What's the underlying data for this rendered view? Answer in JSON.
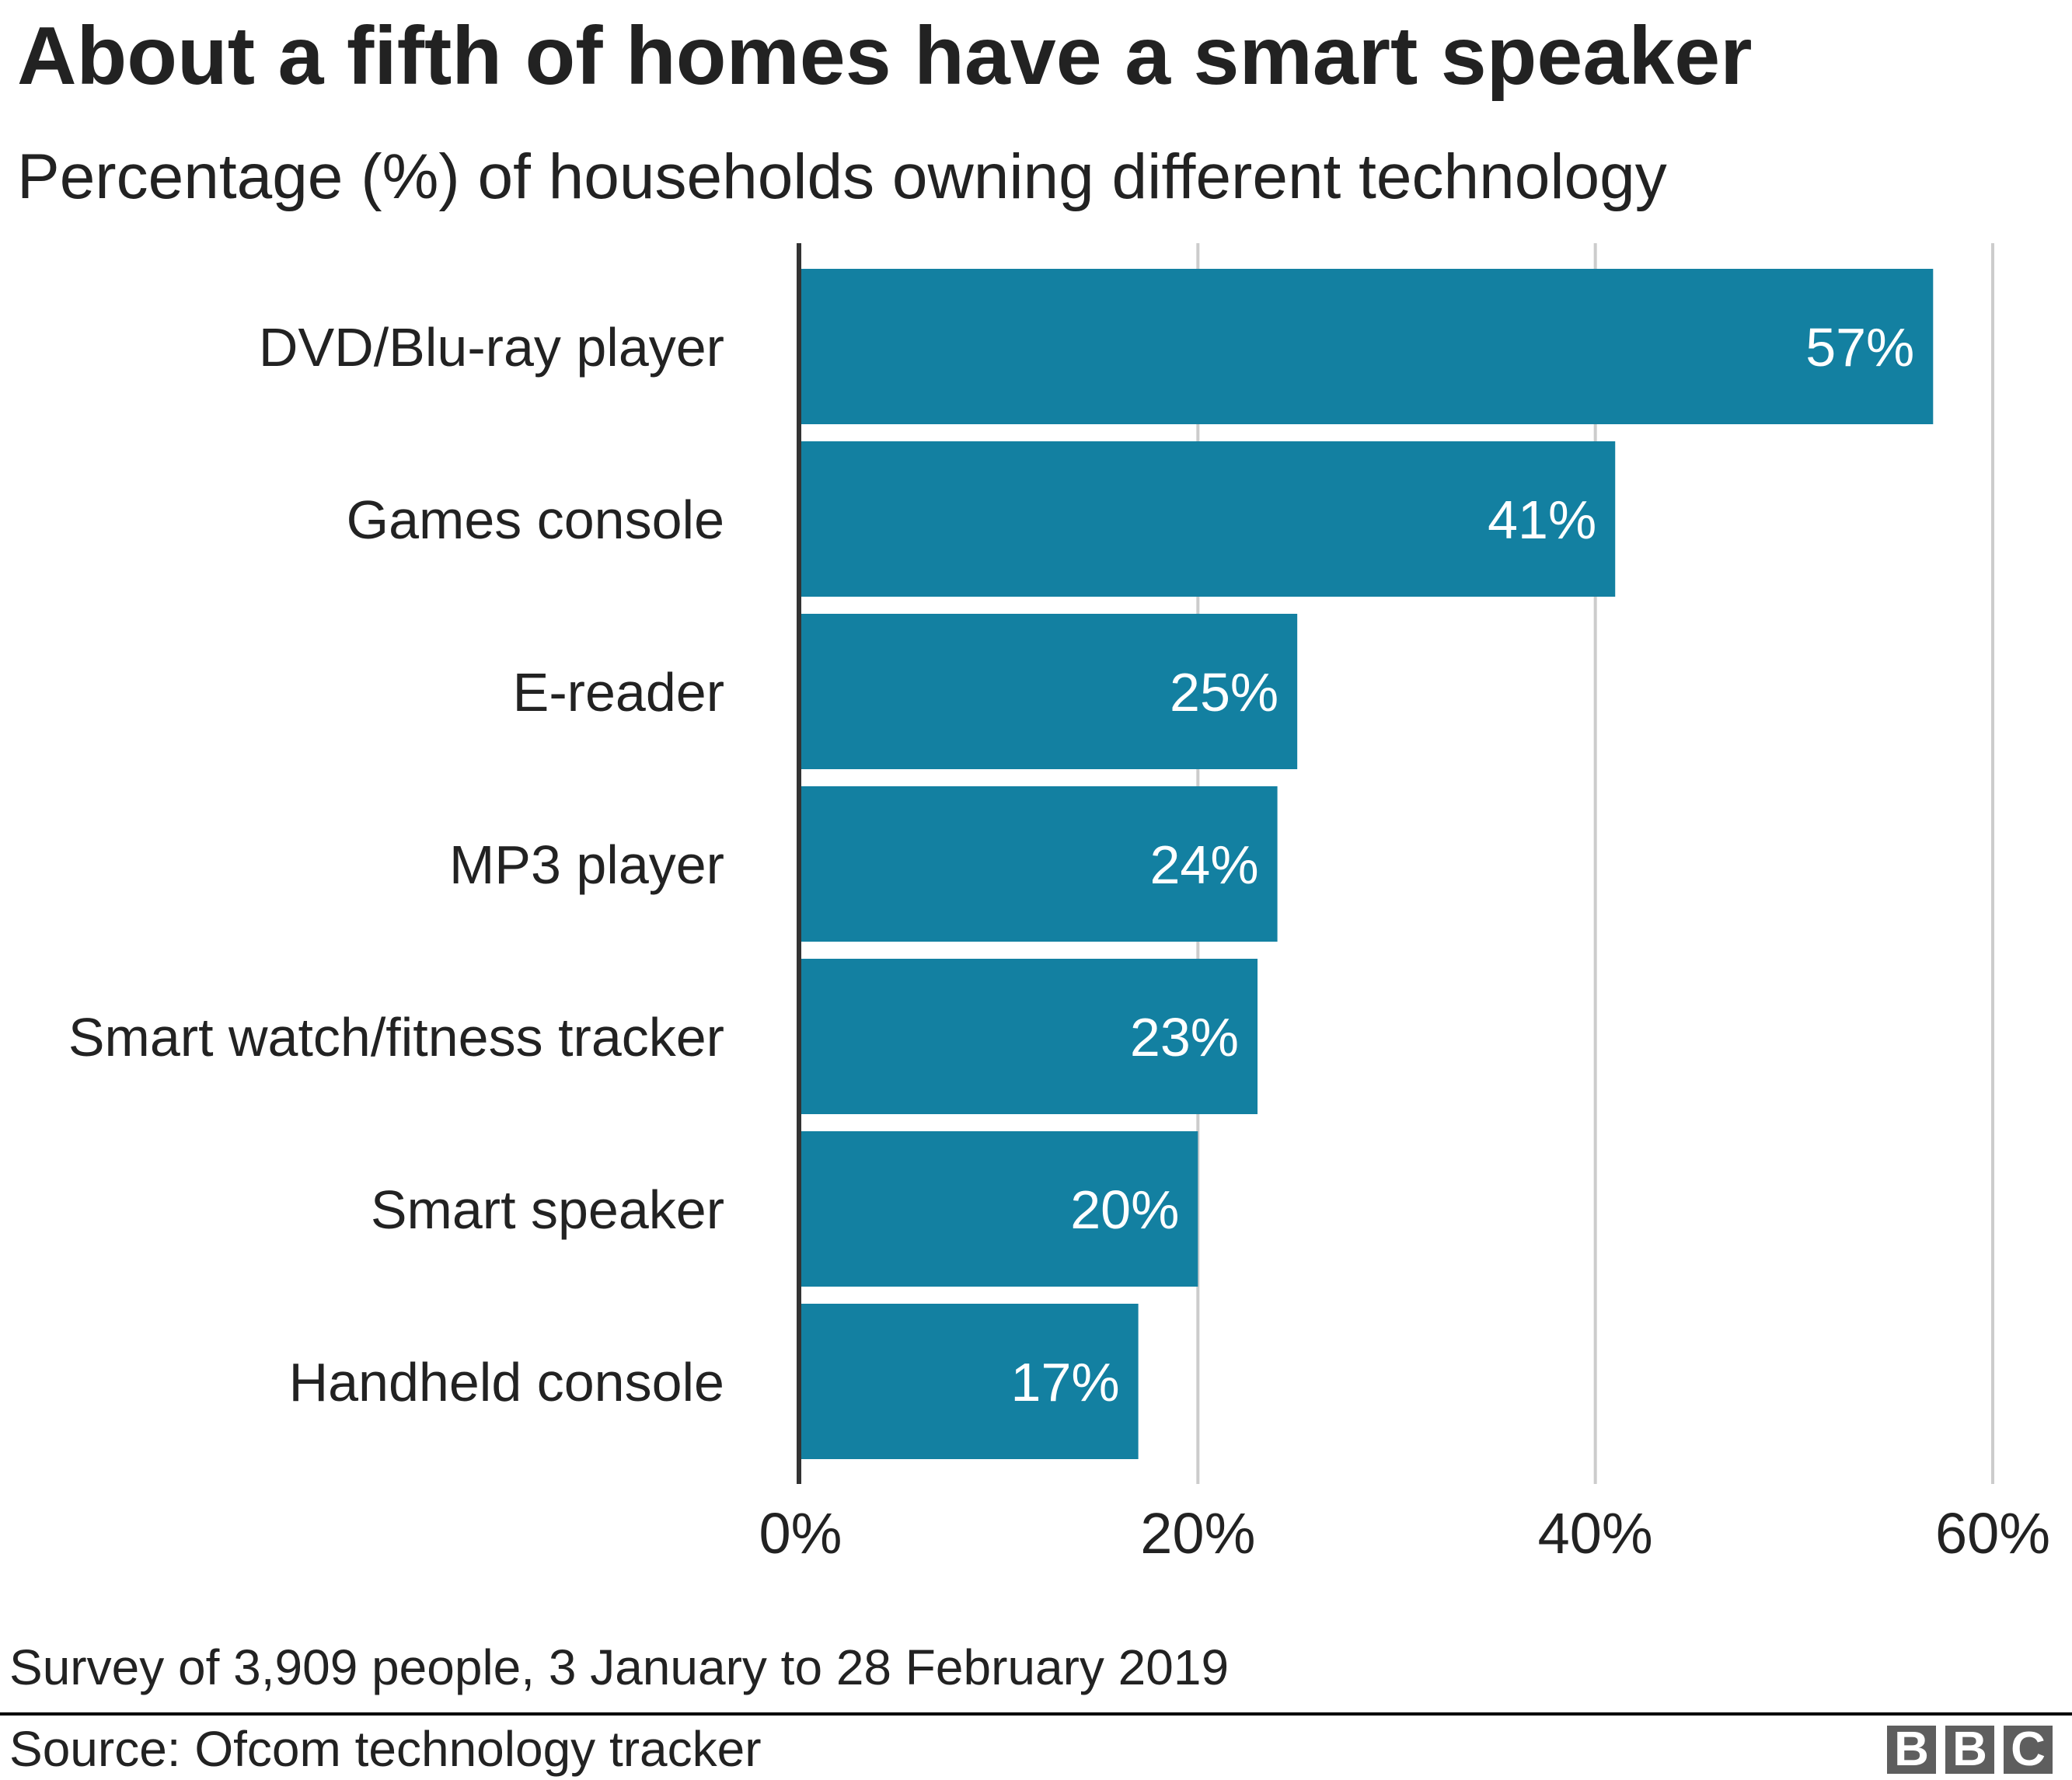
{
  "chart_data": {
    "type": "bar",
    "orientation": "horizontal",
    "title": "About a fifth of homes have a smart speaker",
    "subtitle": "Percentage (%) of households owning different technology",
    "categories": [
      "DVD/Blu-ray player",
      "Games console",
      "E-reader",
      "MP3 player",
      "Smart watch/fitness tracker",
      "Smart speaker",
      "Handheld console"
    ],
    "values": [
      57,
      41,
      25,
      24,
      23,
      20,
      17
    ],
    "data_labels": [
      "57%",
      "41%",
      "25%",
      "24%",
      "23%",
      "20%",
      "17%"
    ],
    "xlim": [
      0,
      60
    ],
    "xticks": [
      0,
      20,
      40,
      60
    ],
    "xtick_labels": [
      "0%",
      "20%",
      "40%",
      "60%"
    ],
    "xlabel": "",
    "ylabel": "",
    "grid": "vertical",
    "bar_color": "#1380a1"
  },
  "footnote": "Survey of 3,909 people, 3 January to 28 February 2019",
  "source": "Source: Ofcom technology tracker",
  "logo": "BBC"
}
